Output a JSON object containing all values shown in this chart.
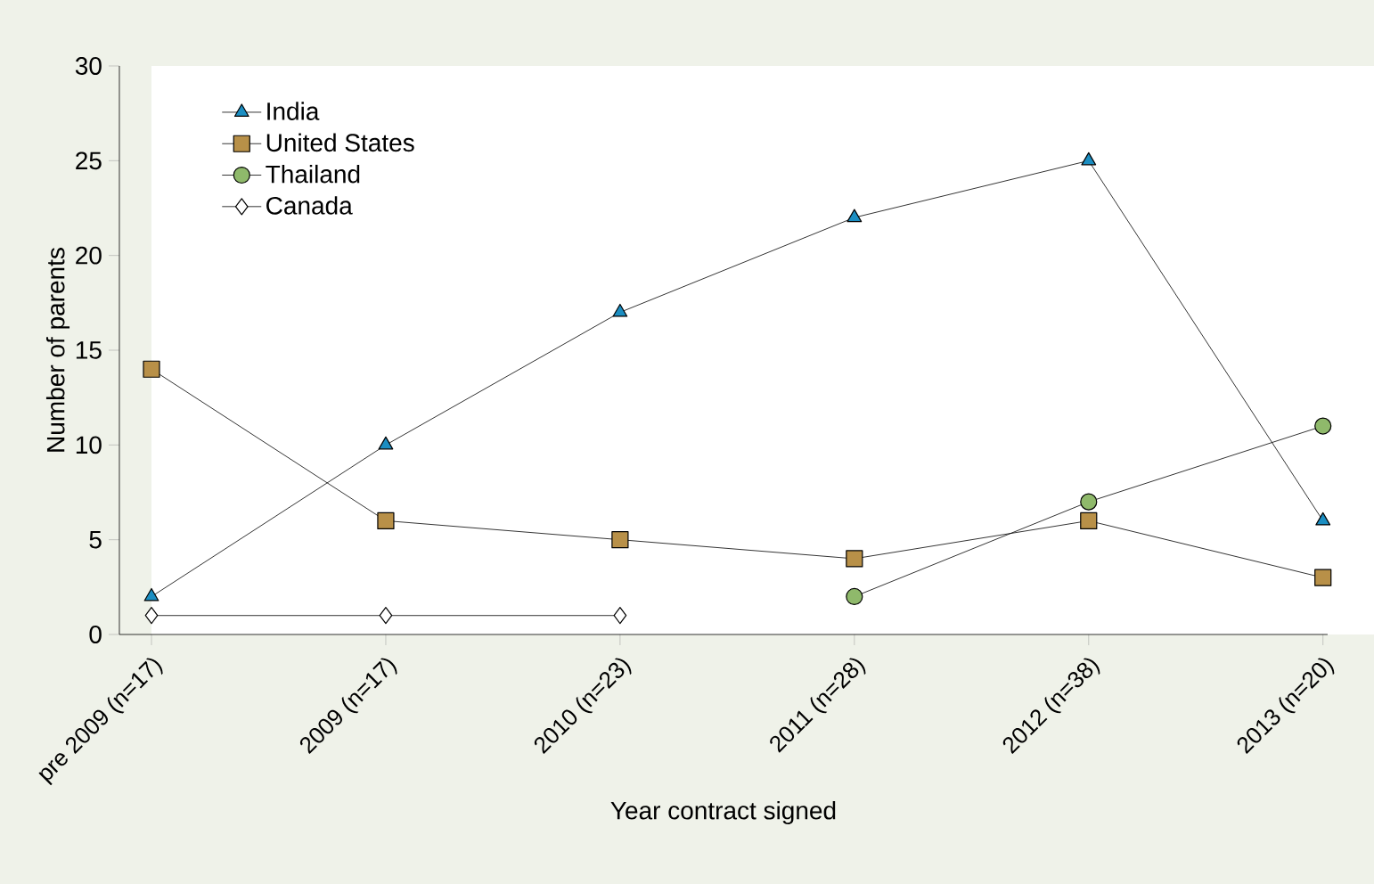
{
  "chart_data": {
    "type": "line",
    "categories": [
      "pre 2009 (n=17)",
      "2009 (n=17)",
      "2010 (n=23)",
      "2011 (n=28)",
      "2012 (n=38)",
      "2013 (n=20)"
    ],
    "series": [
      {
        "name": "India",
        "color": "#1b8ec2",
        "marker": "triangle",
        "values": [
          2,
          10,
          17,
          22,
          25,
          6
        ]
      },
      {
        "name": "United States",
        "color": "#b89048",
        "marker": "square",
        "values": [
          14,
          6,
          5,
          4,
          6,
          3
        ]
      },
      {
        "name": "Thailand",
        "color": "#8fb96b",
        "marker": "circle",
        "values": [
          null,
          null,
          null,
          2,
          7,
          11
        ]
      },
      {
        "name": "Canada",
        "color": "#ffffff",
        "marker": "diamond",
        "values": [
          1,
          1,
          1,
          null,
          null,
          null
        ]
      }
    ],
    "xlabel": "Year contract signed",
    "ylabel": "Number of parents",
    "ylim": [
      0,
      30
    ],
    "yticks": [
      0,
      5,
      10,
      15,
      20,
      25,
      30
    ],
    "legend": "top left",
    "grid": false,
    "line_style": "solid"
  }
}
